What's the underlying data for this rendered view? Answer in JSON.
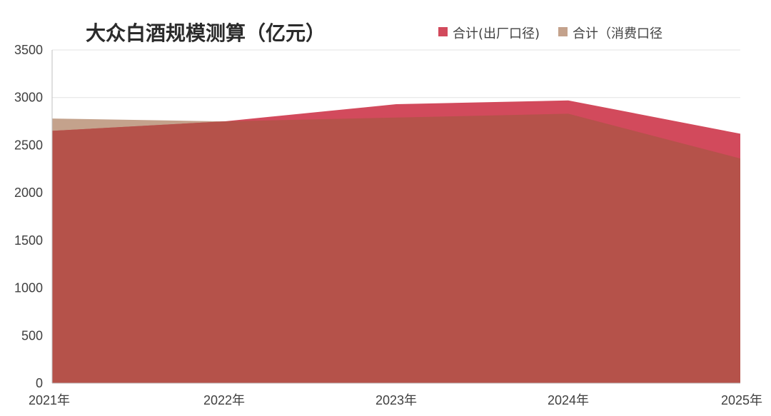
{
  "chart_data": {
    "type": "area",
    "title": "大众白酒规模测算（亿元）",
    "categories": [
      "2021年",
      "2022年",
      "2023年",
      "2024年",
      "2025年"
    ],
    "ylim": [
      0,
      3500
    ],
    "yticks": [
      0,
      500,
      1000,
      1500,
      2000,
      2500,
      3000,
      3500
    ],
    "grid": true,
    "legend_position": "top-right",
    "series": [
      {
        "name": "合计(出厂口径)",
        "values": [
          2650,
          2750,
          2930,
          2970,
          2620
        ],
        "color": "#d24a5c"
      },
      {
        "name": "合计（消费口径",
        "values": [
          2780,
          2750,
          2790,
          2830,
          2360
        ],
        "color": "#c4a28c"
      }
    ],
    "overlap_color": "#b5524a"
  }
}
